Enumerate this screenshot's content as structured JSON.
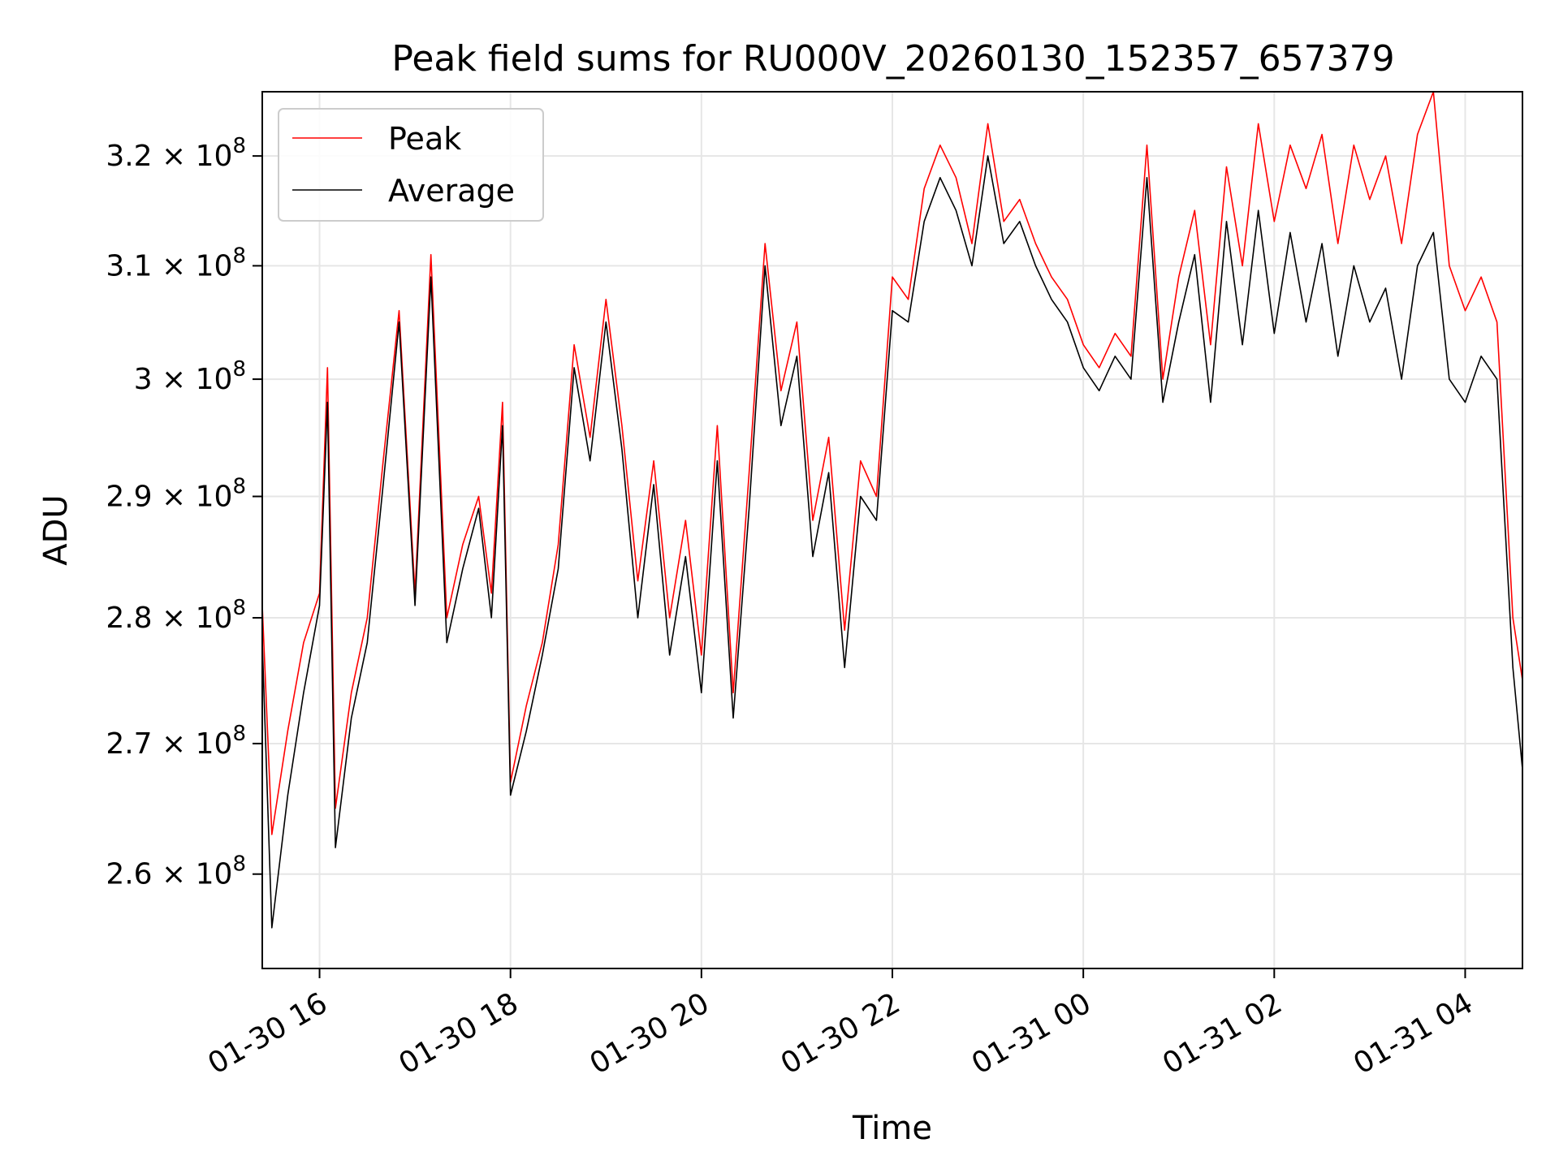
{
  "chart_data": {
    "type": "line",
    "title": "Peak field sums for RU000V_20260130_152357_657379",
    "xlabel": "Time",
    "ylabel": "ADU",
    "xlim": [
      "2026-01-30T15:24",
      "2026-01-31T04:36"
    ],
    "ylim": [
      253000000.0,
      326000000.0
    ],
    "yscale": "log",
    "grid": true,
    "legend_position": "top-left",
    "x_ticks": [
      "01-30 16",
      "01-30 18",
      "01-30 20",
      "01-30 22",
      "01-31 00",
      "01-31 02",
      "01-31 04"
    ],
    "x_tick_times": [
      "2026-01-30T16:00",
      "2026-01-30T18:00",
      "2026-01-30T20:00",
      "2026-01-30T22:00",
      "2026-01-31T00:00",
      "2026-01-31T02:00",
      "2026-01-31T04:00"
    ],
    "y_ticks": [
      {
        "value": 260000000.0,
        "mantissa": "2.6"
      },
      {
        "value": 270000000.0,
        "mantissa": "2.7"
      },
      {
        "value": 280000000.0,
        "mantissa": "2.8"
      },
      {
        "value": 290000000.0,
        "mantissa": "2.9"
      },
      {
        "value": 300000000.0,
        "mantissa": "3"
      },
      {
        "value": 310000000.0,
        "mantissa": "3.1"
      },
      {
        "value": 320000000.0,
        "mantissa": "3.2"
      }
    ],
    "y_tick_base": "10",
    "y_tick_exponent": "8",
    "x": [
      "2026-01-30T15:24",
      "2026-01-30T15:30",
      "2026-01-30T15:40",
      "2026-01-30T15:50",
      "2026-01-30T16:00",
      "2026-01-30T16:05",
      "2026-01-30T16:10",
      "2026-01-30T16:20",
      "2026-01-30T16:30",
      "2026-01-30T16:40",
      "2026-01-30T16:50",
      "2026-01-30T17:00",
      "2026-01-30T17:10",
      "2026-01-30T17:20",
      "2026-01-30T17:30",
      "2026-01-30T17:40",
      "2026-01-30T17:48",
      "2026-01-30T17:55",
      "2026-01-30T18:00",
      "2026-01-30T18:10",
      "2026-01-30T18:20",
      "2026-01-30T18:30",
      "2026-01-30T18:40",
      "2026-01-30T18:50",
      "2026-01-30T19:00",
      "2026-01-30T19:10",
      "2026-01-30T19:20",
      "2026-01-30T19:30",
      "2026-01-30T19:40",
      "2026-01-30T19:50",
      "2026-01-30T20:00",
      "2026-01-30T20:10",
      "2026-01-30T20:20",
      "2026-01-30T20:30",
      "2026-01-30T20:40",
      "2026-01-30T20:50",
      "2026-01-30T21:00",
      "2026-01-30T21:10",
      "2026-01-30T21:20",
      "2026-01-30T21:30",
      "2026-01-30T21:40",
      "2026-01-30T21:50",
      "2026-01-30T22:00",
      "2026-01-30T22:10",
      "2026-01-30T22:20",
      "2026-01-30T22:30",
      "2026-01-30T22:40",
      "2026-01-30T22:50",
      "2026-01-30T23:00",
      "2026-01-30T23:10",
      "2026-01-30T23:20",
      "2026-01-30T23:30",
      "2026-01-30T23:40",
      "2026-01-30T23:50",
      "2026-01-31T00:00",
      "2026-01-31T00:10",
      "2026-01-31T00:20",
      "2026-01-31T00:30",
      "2026-01-31T00:40",
      "2026-01-31T00:50",
      "2026-01-31T01:00",
      "2026-01-31T01:10",
      "2026-01-31T01:20",
      "2026-01-31T01:30",
      "2026-01-31T01:40",
      "2026-01-31T01:50",
      "2026-01-31T02:00",
      "2026-01-31T02:10",
      "2026-01-31T02:20",
      "2026-01-31T02:30",
      "2026-01-31T02:40",
      "2026-01-31T02:50",
      "2026-01-31T03:00",
      "2026-01-31T03:10",
      "2026-01-31T03:20",
      "2026-01-31T03:30",
      "2026-01-31T03:40",
      "2026-01-31T03:50",
      "2026-01-31T04:00",
      "2026-01-31T04:10",
      "2026-01-31T04:20",
      "2026-01-31T04:30",
      "2026-01-31T04:36"
    ],
    "series": [
      {
        "name": "Peak",
        "color": "#ff0000",
        "values": [
          281000000.0,
          263000000.0,
          271000000.0,
          278000000.0,
          282000000.0,
          301000000.0,
          265000000.0,
          274000000.0,
          280000000.0,
          293000000.0,
          306000000.0,
          282000000.0,
          311000000.0,
          280000000.0,
          286000000.0,
          290000000.0,
          282000000.0,
          298000000.0,
          267000000.0,
          273000000.0,
          278000000.0,
          286000000.0,
          303000000.0,
          295000000.0,
          307000000.0,
          296000000.0,
          283000000.0,
          293000000.0,
          280000000.0,
          288000000.0,
          277000000.0,
          296000000.0,
          274000000.0,
          292000000.0,
          312000000.0,
          299000000.0,
          305000000.0,
          288000000.0,
          295000000.0,
          279000000.0,
          293000000.0,
          290000000.0,
          309000000.0,
          307000000.0,
          317000000.0,
          321000000.0,
          318000000.0,
          312000000.0,
          323000000.0,
          314000000.0,
          316000000.0,
          312000000.0,
          309000000.0,
          307000000.0,
          303000000.0,
          301000000.0,
          304000000.0,
          302000000.0,
          321000000.0,
          300000000.0,
          309000000.0,
          315000000.0,
          303000000.0,
          319000000.0,
          310000000.0,
          323000000.0,
          314000000.0,
          321000000.0,
          317000000.0,
          322000000.0,
          312000000.0,
          321000000.0,
          316000000.0,
          320000000.0,
          312000000.0,
          322000000.0,
          326000000.0,
          310000000.0,
          306000000.0,
          309000000.0,
          305000000.0,
          280000000.0,
          275000000.0
        ]
      },
      {
        "name": "Average",
        "color": "#000000",
        "values": [
          278000000.0,
          256000000.0,
          266000000.0,
          274000000.0,
          281000000.0,
          298000000.0,
          262000000.0,
          272000000.0,
          278000000.0,
          291000000.0,
          305000000.0,
          281000000.0,
          309000000.0,
          278000000.0,
          284000000.0,
          289000000.0,
          280000000.0,
          296000000.0,
          266000000.0,
          271000000.0,
          277000000.0,
          284000000.0,
          301000000.0,
          293000000.0,
          305000000.0,
          294000000.0,
          280000000.0,
          291000000.0,
          277000000.0,
          285000000.0,
          274000000.0,
          293000000.0,
          272000000.0,
          289000000.0,
          310000000.0,
          296000000.0,
          302000000.0,
          285000000.0,
          292000000.0,
          276000000.0,
          290000000.0,
          288000000.0,
          306000000.0,
          305000000.0,
          314000000.0,
          318000000.0,
          315000000.0,
          310000000.0,
          320000000.0,
          312000000.0,
          314000000.0,
          310000000.0,
          307000000.0,
          305000000.0,
          301000000.0,
          299000000.0,
          302000000.0,
          300000000.0,
          318000000.0,
          298000000.0,
          305000000.0,
          311000000.0,
          298000000.0,
          314000000.0,
          303000000.0,
          315000000.0,
          304000000.0,
          313000000.0,
          305000000.0,
          312000000.0,
          302000000.0,
          310000000.0,
          305000000.0,
          308000000.0,
          300000000.0,
          310000000.0,
          313000000.0,
          300000000.0,
          298000000.0,
          302000000.0,
          300000000.0,
          276000000.0,
          268000000.0
        ]
      }
    ]
  }
}
